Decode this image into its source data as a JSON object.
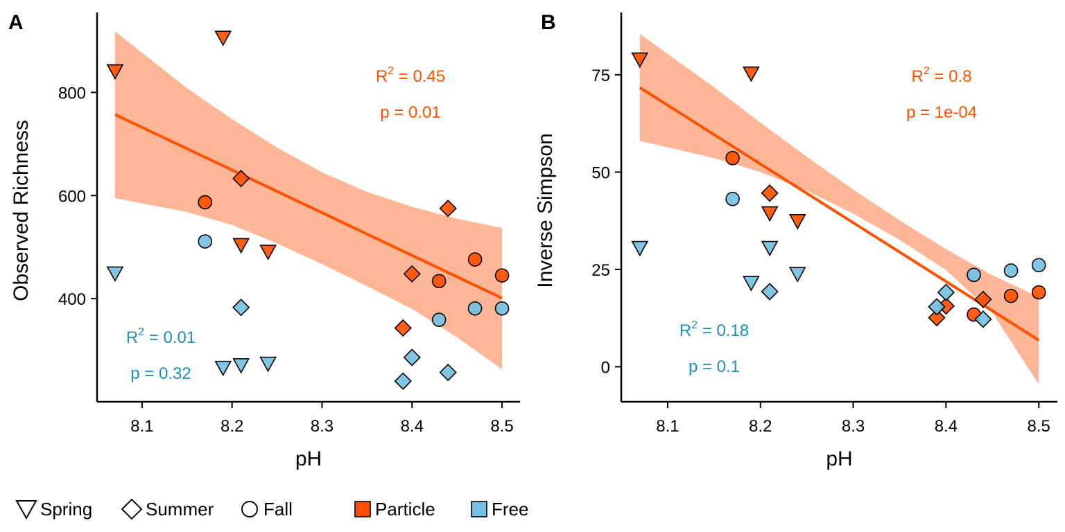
{
  "colors": {
    "particle": "#FF5100",
    "free": "#75C0E2",
    "band": "#FDB797",
    "particle_text": "#FF5100",
    "free_text": "#1D8DC4",
    "mixed": "#A08E87"
  },
  "legend": {
    "shapes": [
      {
        "label": "Spring",
        "shape": "triangle-down"
      },
      {
        "label": "Summer",
        "shape": "diamond"
      },
      {
        "label": "Fall",
        "shape": "circle"
      }
    ],
    "fills": [
      {
        "label": "Particle",
        "color": "#FF5100"
      },
      {
        "label": "Free",
        "color": "#75C0E2"
      }
    ]
  },
  "chart_data": [
    {
      "panel": "A",
      "type": "scatter",
      "xlabel": "pH",
      "ylabel": "Observed Richness",
      "xlim": [
        8.05,
        8.52
      ],
      "ylim": [
        200,
        955
      ],
      "xticks": [
        "8.1",
        "8.2",
        "8.3",
        "8.4",
        "8.5"
      ],
      "xtick_values": [
        8.1,
        8.2,
        8.3,
        8.4,
        8.5
      ],
      "yticks": [
        "400",
        "600",
        "800"
      ],
      "ytick_values": [
        400,
        600,
        800
      ],
      "fit": {
        "x": [
          8.07,
          8.5
        ],
        "y": [
          757,
          401
        ],
        "band_x": [
          8.07,
          8.15,
          8.2,
          8.25,
          8.3,
          8.35,
          8.4,
          8.45,
          8.5
        ],
        "band_upper": [
          918,
          808,
          748,
          693,
          645,
          607,
          578,
          555,
          537
        ],
        "band_lower": [
          595,
          568,
          543,
          507,
          467,
          424,
          380,
          325,
          263
        ]
      },
      "annotations": [
        {
          "r2": "0.45",
          "p": "p = 0.01",
          "group": "particle"
        },
        {
          "r2": "0.01",
          "p": "p = 0.32",
          "group": "free"
        }
      ],
      "points": [
        {
          "x": 8.07,
          "y": 840,
          "season": "Spring",
          "fraction": "Particle"
        },
        {
          "x": 8.19,
          "y": 905,
          "season": "Spring",
          "fraction": "Particle"
        },
        {
          "x": 8.21,
          "y": 503,
          "season": "Spring",
          "fraction": "Particle"
        },
        {
          "x": 8.24,
          "y": 490,
          "season": "Spring",
          "fraction": "Particle"
        },
        {
          "x": 8.21,
          "y": 633,
          "season": "Summer",
          "fraction": "Particle"
        },
        {
          "x": 8.44,
          "y": 575,
          "season": "Summer",
          "fraction": "Particle"
        },
        {
          "x": 8.4,
          "y": 448,
          "season": "Summer",
          "fraction": "Particle"
        },
        {
          "x": 8.39,
          "y": 343,
          "season": "Summer",
          "fraction": "Particle"
        },
        {
          "x": 8.17,
          "y": 587,
          "season": "Fall",
          "fraction": "Particle"
        },
        {
          "x": 8.47,
          "y": 476,
          "season": "Fall",
          "fraction": "Particle"
        },
        {
          "x": 8.43,
          "y": 434,
          "season": "Fall",
          "fraction": "Particle"
        },
        {
          "x": 8.5,
          "y": 445,
          "season": "Fall",
          "fraction": "Particle"
        },
        {
          "x": 8.07,
          "y": 448,
          "season": "Spring",
          "fraction": "Free"
        },
        {
          "x": 8.19,
          "y": 265,
          "season": "Spring",
          "fraction": "Free"
        },
        {
          "x": 8.21,
          "y": 270,
          "season": "Spring",
          "fraction": "Free"
        },
        {
          "x": 8.24,
          "y": 273,
          "season": "Spring",
          "fraction": "Free"
        },
        {
          "x": 8.21,
          "y": 383,
          "season": "Summer",
          "fraction": "Free"
        },
        {
          "x": 8.4,
          "y": 286,
          "season": "Summer",
          "fraction": "Free"
        },
        {
          "x": 8.44,
          "y": 257,
          "season": "Summer",
          "fraction": "Free"
        },
        {
          "x": 8.39,
          "y": 240,
          "season": "Summer",
          "fraction": "Free"
        },
        {
          "x": 8.17,
          "y": 511,
          "season": "Fall",
          "fraction": "Free"
        },
        {
          "x": 8.43,
          "y": 359,
          "season": "Fall",
          "fraction": "Free"
        },
        {
          "x": 8.47,
          "y": 381,
          "season": "Fall",
          "fraction": "Free"
        },
        {
          "x": 8.5,
          "y": 381,
          "season": "Fall",
          "fraction": "Free"
        }
      ]
    },
    {
      "panel": "B",
      "type": "scatter",
      "xlabel": "pH",
      "ylabel": "Inverse Simpson",
      "xlim": [
        8.05,
        8.52
      ],
      "ylim": [
        -9,
        91
      ],
      "xticks": [
        "8.1",
        "8.2",
        "8.3",
        "8.4",
        "8.5"
      ],
      "xtick_values": [
        8.1,
        8.2,
        8.3,
        8.4,
        8.5
      ],
      "yticks": [
        "0",
        "25",
        "50",
        "75"
      ],
      "ytick_values": [
        0,
        25,
        50,
        75
      ],
      "fit": {
        "x": [
          8.07,
          8.5
        ],
        "y": [
          71.7,
          6.8
        ],
        "band_x": [
          8.07,
          8.15,
          8.2,
          8.25,
          8.3,
          8.35,
          8.4,
          8.45,
          8.5
        ],
        "band_upper": [
          85.5,
          71.8,
          62.7,
          53.9,
          45.5,
          37.6,
          30.2,
          23.5,
          17.9
        ],
        "band_lower": [
          58,
          53.6,
          50,
          45.2,
          39.3,
          32.6,
          24.8,
          13.8,
          -4.5
        ]
      },
      "annotations": [
        {
          "r2": "0.8",
          "p": "p = 1e-04",
          "group": "particle"
        },
        {
          "r2": "0.18",
          "p": "p = 0.1",
          "group": "free"
        }
      ],
      "points": [
        {
          "x": 8.07,
          "y": 78.8,
          "season": "Spring",
          "fraction": "Particle"
        },
        {
          "x": 8.19,
          "y": 75.2,
          "season": "Spring",
          "fraction": "Particle"
        },
        {
          "x": 8.21,
          "y": 39.3,
          "season": "Spring",
          "fraction": "Particle"
        },
        {
          "x": 8.24,
          "y": 37.3,
          "season": "Spring",
          "fraction": "Particle"
        },
        {
          "x": 8.21,
          "y": 44.6,
          "season": "Summer",
          "fraction": "Particle"
        },
        {
          "x": 8.4,
          "y": 15.6,
          "season": "Summer",
          "fraction": "Particle"
        },
        {
          "x": 8.44,
          "y": 17.3,
          "season": "Summer",
          "fraction": "Particle"
        },
        {
          "x": 8.39,
          "y": 12.6,
          "season": "Summer",
          "fraction": "Particle"
        },
        {
          "x": 8.17,
          "y": 53.6,
          "season": "Fall",
          "fraction": "Particle"
        },
        {
          "x": 8.43,
          "y": 13.4,
          "season": "Fall",
          "fraction": "Particle"
        },
        {
          "x": 8.47,
          "y": 18.2,
          "season": "Fall",
          "fraction": "Particle"
        },
        {
          "x": 8.5,
          "y": 19.1,
          "season": "Fall",
          "fraction": "Particle"
        },
        {
          "x": 8.07,
          "y": 30.4,
          "season": "Spring",
          "fraction": "Free"
        },
        {
          "x": 8.19,
          "y": 21.4,
          "season": "Spring",
          "fraction": "Free"
        },
        {
          "x": 8.21,
          "y": 30.4,
          "season": "Spring",
          "fraction": "Free"
        },
        {
          "x": 8.24,
          "y": 23.7,
          "season": "Spring",
          "fraction": "Free"
        },
        {
          "x": 8.21,
          "y": 19.3,
          "season": "Summer",
          "fraction": "Free"
        },
        {
          "x": 8.39,
          "y": 15.4,
          "season": "Summer",
          "fraction": "Free"
        },
        {
          "x": 8.4,
          "y": 19.1,
          "season": "Summer",
          "fraction": "Free"
        },
        {
          "x": 8.44,
          "y": 12.2,
          "season": "Summer",
          "fraction": "Free"
        },
        {
          "x": 8.17,
          "y": 43.1,
          "season": "Fall",
          "fraction": "Free"
        },
        {
          "x": 8.43,
          "y": 23.6,
          "season": "Fall",
          "fraction": "Free"
        },
        {
          "x": 8.47,
          "y": 24.7,
          "season": "Fall",
          "fraction": "Free"
        },
        {
          "x": 8.5,
          "y": 26.1,
          "season": "Fall",
          "fraction": "Free"
        }
      ]
    }
  ]
}
